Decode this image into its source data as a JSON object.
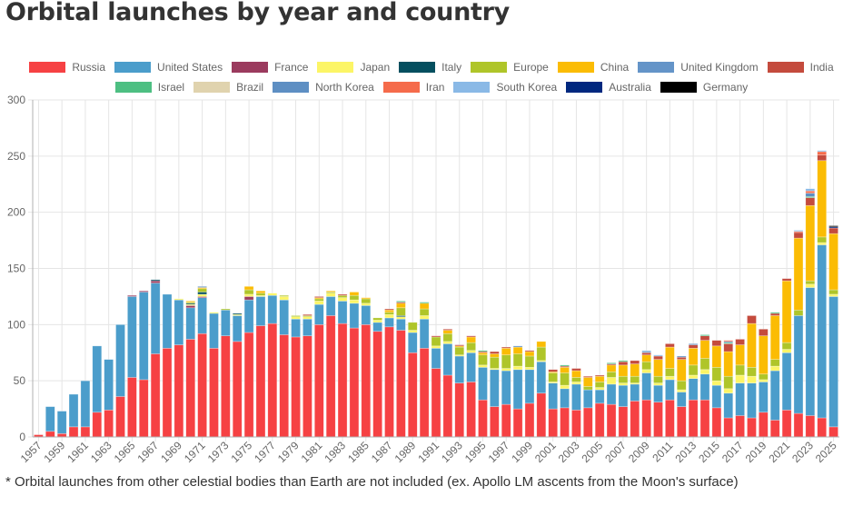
{
  "title": "Orbital launches by year and country",
  "footnote": "* Orbital launches from other celestial bodies than Earth are not included (ex. Apollo LM ascents from the Moon's surface)",
  "chart_data": {
    "type": "bar",
    "stacked": true,
    "title": "Orbital launches by year and country",
    "xlabel": "",
    "ylabel": "",
    "ylim": [
      0,
      300
    ],
    "yticks": [
      0,
      50,
      100,
      150,
      200,
      250,
      300
    ],
    "grid": true,
    "legend_position": "top-center",
    "categories": [
      "1957",
      "1958",
      "1959",
      "1960",
      "1961",
      "1962",
      "1963",
      "1964",
      "1965",
      "1966",
      "1967",
      "1968",
      "1969",
      "1970",
      "1971",
      "1972",
      "1973",
      "1974",
      "1975",
      "1976",
      "1977",
      "1978",
      "1979",
      "1980",
      "1981",
      "1982",
      "1983",
      "1984",
      "1985",
      "1986",
      "1987",
      "1988",
      "1989",
      "1990",
      "1991",
      "1992",
      "1993",
      "1994",
      "1995",
      "1996",
      "1997",
      "1998",
      "1999",
      "2000",
      "2001",
      "2002",
      "2003",
      "2004",
      "2005",
      "2006",
      "2007",
      "2008",
      "2009",
      "2010",
      "2011",
      "2012",
      "2013",
      "2014",
      "2015",
      "2016",
      "2017",
      "2018",
      "2019",
      "2020",
      "2021",
      "2022",
      "2023",
      "2024",
      "2025"
    ],
    "xtick_labels": [
      "1957",
      "1959",
      "1961",
      "1963",
      "1965",
      "1967",
      "1969",
      "1971",
      "1973",
      "1975",
      "1977",
      "1979",
      "1981",
      "1983",
      "1985",
      "1987",
      "1989",
      "1991",
      "1993",
      "1995",
      "1997",
      "1999",
      "2001",
      "2003",
      "2005",
      "2007",
      "2009",
      "2011",
      "2013",
      "2015",
      "2017",
      "2019",
      "2021",
      "2023",
      "2025"
    ],
    "series": [
      {
        "name": "Russia",
        "color": "#f64143",
        "values": [
          2,
          5,
          3,
          9,
          9,
          22,
          24,
          36,
          53,
          51,
          74,
          79,
          82,
          87,
          92,
          79,
          90,
          85,
          93,
          99,
          101,
          91,
          89,
          90,
          100,
          108,
          101,
          97,
          100,
          94,
          98,
          95,
          75,
          79,
          61,
          55,
          48,
          49,
          33,
          27,
          29,
          25,
          30,
          39,
          25,
          26,
          24,
          26,
          30,
          29,
          27,
          32,
          33,
          31,
          33,
          27,
          33,
          33,
          26,
          17,
          19,
          17,
          22,
          15,
          24,
          21,
          19,
          17,
          9
        ]
      },
      {
        "name": "United States",
        "color": "#4b9dcb",
        "values": [
          0,
          22,
          20,
          29,
          41,
          59,
          45,
          64,
          72,
          78,
          63,
          48,
          40,
          28,
          32,
          31,
          23,
          23,
          29,
          26,
          25,
          31,
          16,
          15,
          18,
          17,
          20,
          22,
          17,
          8,
          8,
          10,
          18,
          26,
          18,
          28,
          24,
          26,
          29,
          33,
          30,
          35,
          30,
          28,
          23,
          17,
          23,
          16,
          12,
          18,
          19,
          15,
          24,
          15,
          18,
          13,
          19,
          23,
          20,
          22,
          29,
          31,
          27,
          44,
          51,
          87,
          114,
          154,
          116
        ]
      },
      {
        "name": "France",
        "color": "#9b3b5e",
        "values": [
          0,
          0,
          0,
          0,
          0,
          0,
          0,
          0,
          1,
          1,
          2,
          0,
          0,
          2,
          1,
          0,
          0,
          0,
          3,
          0,
          0,
          0,
          0,
          0,
          0,
          0,
          0,
          0,
          0,
          0,
          0,
          0,
          0,
          0,
          0,
          0,
          0,
          0,
          0,
          0,
          0,
          0,
          0,
          0,
          0,
          0,
          0,
          0,
          0,
          0,
          0,
          0,
          0,
          0,
          0,
          0,
          0,
          0,
          0,
          0,
          0,
          0,
          0,
          0,
          0,
          0,
          0,
          0,
          0
        ]
      },
      {
        "name": "Japan",
        "color": "#fcf566",
        "values": [
          0,
          0,
          0,
          0,
          0,
          0,
          0,
          0,
          0,
          0,
          0,
          0,
          1,
          1,
          2,
          1,
          0,
          1,
          2,
          1,
          2,
          3,
          2,
          2,
          3,
          3,
          3,
          3,
          2,
          2,
          3,
          2,
          2,
          3,
          2,
          2,
          1,
          2,
          2,
          1,
          2,
          3,
          2,
          1,
          1,
          3,
          2,
          0,
          2,
          6,
          2,
          1,
          3,
          2,
          3,
          2,
          3,
          4,
          4,
          4,
          7,
          6,
          2,
          4,
          3,
          0,
          3,
          2,
          2
        ]
      },
      {
        "name": "Italy",
        "color": "#044f5f",
        "values": [
          0,
          0,
          0,
          0,
          0,
          0,
          0,
          0,
          0,
          0,
          1,
          0,
          0,
          1,
          2,
          0,
          0,
          1,
          0,
          0,
          0,
          0,
          0,
          0,
          0,
          0,
          0,
          0,
          0,
          0,
          0,
          1,
          0,
          0,
          0,
          0,
          0,
          0,
          0,
          0,
          0,
          0,
          0,
          0,
          0,
          0,
          0,
          0,
          0,
          0,
          0,
          0,
          0,
          0,
          0,
          0,
          0,
          0,
          0,
          0,
          0,
          0,
          0,
          0,
          0,
          0,
          0,
          0,
          0
        ]
      },
      {
        "name": "Europe",
        "color": "#afc529",
        "values": [
          0,
          0,
          0,
          0,
          0,
          0,
          0,
          0,
          0,
          0,
          0,
          0,
          0,
          1,
          3,
          0,
          1,
          0,
          4,
          2,
          0,
          1,
          1,
          1,
          2,
          1,
          2,
          4,
          4,
          2,
          2,
          7,
          7,
          6,
          8,
          7,
          7,
          7,
          9,
          10,
          12,
          11,
          10,
          12,
          8,
          11,
          4,
          3,
          5,
          5,
          6,
          6,
          7,
          6,
          7,
          8,
          9,
          10,
          12,
          11,
          9,
          8,
          5,
          6,
          6,
          5,
          3,
          5,
          4
        ]
      },
      {
        "name": "China",
        "color": "#fbbc04",
        "values": [
          0,
          0,
          0,
          0,
          0,
          0,
          0,
          0,
          0,
          0,
          0,
          0,
          0,
          1,
          1,
          0,
          0,
          0,
          3,
          2,
          0,
          0,
          0,
          0,
          1,
          1,
          0,
          3,
          1,
          0,
          2,
          4,
          0,
          5,
          0,
          3,
          1,
          5,
          2,
          3,
          6,
          6,
          4,
          5,
          1,
          5,
          6,
          8,
          5,
          6,
          10,
          11,
          6,
          15,
          19,
          19,
          15,
          16,
          19,
          22,
          18,
          39,
          34,
          39,
          55,
          64,
          67,
          68,
          50
        ]
      },
      {
        "name": "United Kingdom",
        "color": "#6494c8",
        "values": [
          0,
          0,
          0,
          0,
          0,
          0,
          0,
          0,
          0,
          0,
          0,
          0,
          0,
          0,
          1,
          0,
          0,
          0,
          0,
          0,
          0,
          0,
          0,
          0,
          0,
          0,
          0,
          0,
          0,
          0,
          0,
          0,
          0,
          0,
          0,
          0,
          0,
          0,
          0,
          0,
          0,
          0,
          0,
          0,
          0,
          0,
          0,
          0,
          0,
          0,
          0,
          0,
          0,
          0,
          0,
          0,
          0,
          0,
          0,
          0,
          0,
          0,
          0,
          0,
          0,
          0,
          0,
          0,
          0
        ]
      },
      {
        "name": "India",
        "color": "#c44b3d",
        "values": [
          0,
          0,
          0,
          0,
          0,
          0,
          0,
          0,
          0,
          0,
          0,
          0,
          0,
          0,
          0,
          0,
          0,
          0,
          0,
          0,
          0,
          0,
          0,
          1,
          1,
          0,
          1,
          0,
          0,
          0,
          1,
          1,
          0,
          0,
          1,
          1,
          1,
          1,
          1,
          2,
          1,
          0,
          1,
          0,
          2,
          1,
          2,
          1,
          1,
          1,
          3,
          3,
          2,
          3,
          3,
          2,
          3,
          4,
          5,
          7,
          5,
          7,
          6,
          2,
          2,
          5,
          7,
          5,
          5
        ]
      },
      {
        "name": "Israel",
        "color": "#4dbf82",
        "values": [
          0,
          0,
          0,
          0,
          0,
          0,
          0,
          0,
          0,
          0,
          0,
          0,
          0,
          0,
          0,
          0,
          0,
          0,
          0,
          0,
          0,
          0,
          0,
          0,
          0,
          0,
          0,
          0,
          0,
          0,
          0,
          1,
          0,
          1,
          0,
          0,
          0,
          0,
          1,
          0,
          0,
          0,
          0,
          0,
          0,
          1,
          0,
          0,
          0,
          1,
          1,
          0,
          0,
          0,
          0,
          0,
          0,
          1,
          0,
          1,
          0,
          0,
          0,
          1,
          0,
          0,
          1,
          0,
          0
        ]
      },
      {
        "name": "Brazil",
        "color": "#e0d3ae",
        "values": [
          0,
          0,
          0,
          0,
          0,
          0,
          0,
          0,
          0,
          0,
          0,
          0,
          0,
          0,
          0,
          0,
          0,
          0,
          0,
          0,
          0,
          0,
          0,
          0,
          0,
          0,
          0,
          0,
          0,
          0,
          0,
          0,
          0,
          0,
          0,
          0,
          0,
          0,
          0,
          0,
          0,
          0,
          0,
          0,
          0,
          0,
          0,
          0,
          0,
          0,
          0,
          0,
          0,
          0,
          0,
          0,
          0,
          0,
          0,
          0,
          0,
          0,
          0,
          0,
          0,
          0,
          0,
          0,
          0
        ]
      },
      {
        "name": "North Korea",
        "color": "#5e8fc3",
        "values": [
          0,
          0,
          0,
          0,
          0,
          0,
          0,
          0,
          0,
          0,
          0,
          0,
          0,
          0,
          0,
          0,
          0,
          0,
          0,
          0,
          0,
          0,
          0,
          0,
          0,
          0,
          0,
          0,
          0,
          0,
          0,
          0,
          0,
          0,
          0,
          0,
          0,
          0,
          0,
          0,
          0,
          1,
          0,
          0,
          0,
          0,
          0,
          0,
          0,
          0,
          0,
          0,
          1,
          0,
          0,
          1,
          1,
          0,
          0,
          1,
          0,
          0,
          0,
          0,
          0,
          0,
          3,
          0,
          0
        ]
      },
      {
        "name": "Iran",
        "color": "#f56b4b",
        "values": [
          0,
          0,
          0,
          0,
          0,
          0,
          0,
          0,
          0,
          0,
          0,
          0,
          0,
          0,
          0,
          0,
          0,
          0,
          0,
          0,
          0,
          0,
          0,
          0,
          0,
          0,
          0,
          0,
          0,
          0,
          0,
          0,
          0,
          0,
          0,
          0,
          0,
          0,
          0,
          0,
          0,
          0,
          0,
          0,
          0,
          0,
          0,
          0,
          0,
          0,
          0,
          0,
          0,
          0,
          0,
          0,
          0,
          0,
          0,
          1,
          0,
          0,
          0,
          0,
          0,
          1,
          2,
          3,
          0
        ]
      },
      {
        "name": "South Korea",
        "color": "#8ab9e6",
        "values": [
          0,
          0,
          0,
          0,
          0,
          0,
          0,
          0,
          0,
          0,
          0,
          0,
          0,
          0,
          0,
          0,
          0,
          0,
          0,
          0,
          0,
          0,
          0,
          0,
          0,
          0,
          0,
          0,
          0,
          0,
          0,
          0,
          0,
          0,
          0,
          0,
          0,
          0,
          0,
          0,
          0,
          0,
          0,
          0,
          0,
          0,
          0,
          0,
          0,
          0,
          0,
          0,
          1,
          1,
          0,
          0,
          0,
          0,
          0,
          0,
          0,
          0,
          0,
          0,
          0,
          1,
          2,
          1,
          0
        ]
      },
      {
        "name": "Australia",
        "color": "#00287f",
        "values": [
          0,
          0,
          0,
          0,
          0,
          0,
          0,
          0,
          0,
          0,
          0,
          0,
          0,
          0,
          0,
          0,
          0,
          0,
          0,
          0,
          0,
          0,
          0,
          0,
          0,
          0,
          0,
          0,
          0,
          0,
          0,
          0,
          0,
          0,
          0,
          0,
          0,
          0,
          0,
          0,
          0,
          0,
          0,
          0,
          0,
          0,
          0,
          0,
          0,
          0,
          0,
          0,
          0,
          0,
          0,
          0,
          0,
          0,
          0,
          0,
          0,
          0,
          0,
          0,
          0,
          0,
          0,
          0,
          1
        ]
      },
      {
        "name": "Germany",
        "color": "#000000",
        "values": [
          0,
          0,
          0,
          0,
          0,
          0,
          0,
          0,
          0,
          0,
          0,
          0,
          0,
          0,
          0,
          0,
          0,
          0,
          0,
          0,
          0,
          0,
          0,
          0,
          0,
          0,
          0,
          0,
          0,
          0,
          0,
          0,
          0,
          0,
          0,
          0,
          0,
          0,
          0,
          0,
          0,
          0,
          0,
          0,
          0,
          0,
          0,
          0,
          0,
          0,
          0,
          0,
          0,
          0,
          0,
          0,
          0,
          0,
          0,
          0,
          0,
          0,
          0,
          0,
          0,
          0,
          0,
          0,
          1
        ]
      }
    ]
  }
}
